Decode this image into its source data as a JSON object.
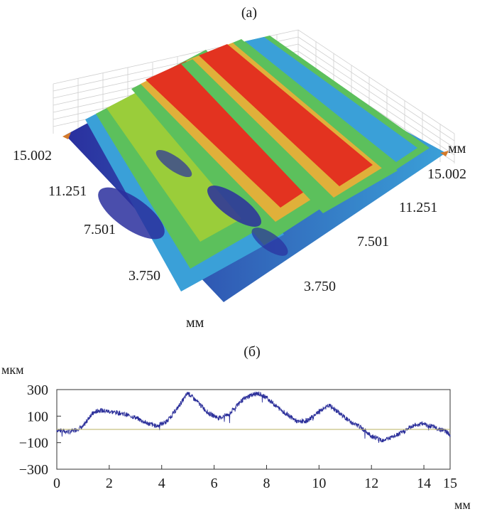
{
  "panel_a": {
    "label": "(а)",
    "axis_left_unit": "мм",
    "axis_right_unit": "мм",
    "left_ticks": [
      "15.002",
      "11.251",
      "7.501",
      "3.750"
    ],
    "right_ticks": [
      "15.002",
      "11.251",
      "7.501",
      "3.750"
    ],
    "colors": {
      "low": "#2a2f9e",
      "mid_low": "#3aa0d8",
      "mid": "#5cc05c",
      "high": "#e33320",
      "grid": "#cfcfcf"
    }
  },
  "panel_b": {
    "label": "(б)",
    "ylabel": "мкм",
    "xlabel": "мм"
  },
  "chart_data": {
    "type": "line",
    "title": "",
    "xlabel": "мм",
    "ylabel": "мкм",
    "xlim": [
      0,
      15
    ],
    "ylim": [
      -300,
      300
    ],
    "xticks": [
      0,
      2,
      4,
      6,
      8,
      10,
      12,
      14,
      15
    ],
    "yticks": [
      300,
      100,
      -100,
      -300
    ],
    "grid": false,
    "series": [
      {
        "color": "#2b2f9a",
        "x": [
          0,
          0.5,
          1.0,
          1.3,
          1.6,
          2.0,
          2.5,
          3.0,
          3.4,
          3.8,
          4.2,
          4.6,
          5.0,
          5.4,
          5.8,
          6.2,
          6.6,
          7.0,
          7.4,
          7.7,
          8.0,
          8.4,
          8.8,
          9.2,
          9.6,
          10.0,
          10.4,
          10.8,
          11.2,
          11.6,
          12.0,
          12.4,
          12.8,
          13.2,
          13.6,
          14.0,
          14.4,
          14.8,
          15.0
        ],
        "values": [
          -5,
          -20,
          20,
          110,
          145,
          135,
          120,
          90,
          50,
          25,
          60,
          160,
          275,
          200,
          120,
          85,
          120,
          210,
          260,
          270,
          240,
          170,
          110,
          55,
          70,
          140,
          180,
          120,
          55,
          15,
          -50,
          -80,
          -60,
          -20,
          30,
          45,
          15,
          -10,
          -40
        ]
      },
      {
        "color": "#b8b060",
        "x": [
          0,
          15
        ],
        "values": [
          0,
          0
        ]
      }
    ]
  }
}
